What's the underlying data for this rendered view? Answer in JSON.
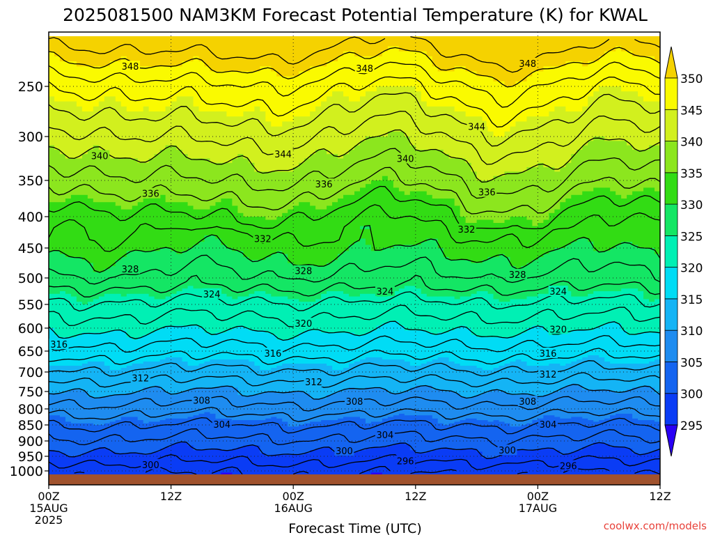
{
  "chart_data": {
    "type": "heatmap",
    "title": "2025081500 NAM3KM Forecast Potential Temperature (K) for KWAL",
    "xlabel": "Forecast Time (UTC)",
    "ylabel": "",
    "credit": "coolwx.com/models",
    "x_ticks": [
      {
        "hours": 0,
        "lines": [
          "00Z",
          "15AUG",
          "2025"
        ]
      },
      {
        "hours": 12,
        "lines": [
          "12Z"
        ]
      },
      {
        "hours": 24,
        "lines": [
          "00Z",
          "16AUG"
        ]
      },
      {
        "hours": 36,
        "lines": [
          "12Z"
        ]
      },
      {
        "hours": 48,
        "lines": [
          "00Z",
          "17AUG"
        ]
      },
      {
        "hours": 60,
        "lines": [
          "12Z"
        ]
      }
    ],
    "y_ticks": [
      250,
      300,
      350,
      400,
      450,
      500,
      550,
      600,
      650,
      700,
      750,
      800,
      850,
      900,
      950,
      1000
    ],
    "y_axis": "pressure (hPa)",
    "ylim": [
      200,
      1010
    ],
    "xlim": [
      0,
      60
    ],
    "colorbar": {
      "levels": [
        295,
        300,
        305,
        310,
        315,
        320,
        325,
        330,
        335,
        340,
        345,
        350
      ],
      "colors": [
        "#2a00f5",
        "#0a3cf5",
        "#1464f0",
        "#1e8cf0",
        "#14b4f5",
        "#00dcf5",
        "#00f0b4",
        "#14e664",
        "#32dc14",
        "#8ce61e",
        "#d2f01e",
        "#fafa00",
        "#f5d200"
      ],
      "label": "Potential Temperature (K)"
    },
    "contour_labels": [
      {
        "value": 348,
        "x_hours": 8.0,
        "pressure": 230
      },
      {
        "value": 348,
        "x_hours": 31.0,
        "pressure": 232
      },
      {
        "value": 348,
        "x_hours": 47.0,
        "pressure": 227
      },
      {
        "value": 344,
        "x_hours": 23.0,
        "pressure": 320
      },
      {
        "value": 344,
        "x_hours": 42.0,
        "pressure": 290
      },
      {
        "value": 340,
        "x_hours": 5.0,
        "pressure": 322
      },
      {
        "value": 340,
        "x_hours": 35.0,
        "pressure": 325
      },
      {
        "value": 336,
        "x_hours": 10.0,
        "pressure": 368
      },
      {
        "value": 336,
        "x_hours": 27.0,
        "pressure": 355
      },
      {
        "value": 336,
        "x_hours": 43.0,
        "pressure": 366
      },
      {
        "value": 332,
        "x_hours": 21.0,
        "pressure": 435
      },
      {
        "value": 332,
        "x_hours": 41.0,
        "pressure": 420
      },
      {
        "value": 328,
        "x_hours": 8.0,
        "pressure": 485
      },
      {
        "value": 328,
        "x_hours": 25.0,
        "pressure": 488
      },
      {
        "value": 328,
        "x_hours": 46.0,
        "pressure": 494
      },
      {
        "value": 324,
        "x_hours": 16.0,
        "pressure": 530
      },
      {
        "value": 324,
        "x_hours": 33.0,
        "pressure": 525
      },
      {
        "value": 324,
        "x_hours": 50.0,
        "pressure": 525
      },
      {
        "value": 320,
        "x_hours": 25.0,
        "pressure": 590
      },
      {
        "value": 320,
        "x_hours": 50.0,
        "pressure": 602
      },
      {
        "value": 316,
        "x_hours": 1.0,
        "pressure": 635
      },
      {
        "value": 316,
        "x_hours": 22.0,
        "pressure": 655
      },
      {
        "value": 316,
        "x_hours": 49.0,
        "pressure": 655
      },
      {
        "value": 312,
        "x_hours": 9.0,
        "pressure": 715
      },
      {
        "value": 312,
        "x_hours": 26.0,
        "pressure": 725
      },
      {
        "value": 312,
        "x_hours": 49.0,
        "pressure": 705
      },
      {
        "value": 308,
        "x_hours": 15.0,
        "pressure": 775
      },
      {
        "value": 308,
        "x_hours": 30.0,
        "pressure": 778
      },
      {
        "value": 308,
        "x_hours": 47.0,
        "pressure": 778
      },
      {
        "value": 304,
        "x_hours": 17.0,
        "pressure": 848
      },
      {
        "value": 304,
        "x_hours": 33.0,
        "pressure": 880
      },
      {
        "value": 304,
        "x_hours": 49.0,
        "pressure": 848
      },
      {
        "value": 300,
        "x_hours": 29.0,
        "pressure": 932
      },
      {
        "value": 300,
        "x_hours": 45.0,
        "pressure": 930
      },
      {
        "value": 300,
        "x_hours": 10.0,
        "pressure": 978
      },
      {
        "value": 296,
        "x_hours": 35.0,
        "pressure": 966
      },
      {
        "value": 296,
        "x_hours": 51.0,
        "pressure": 982
      }
    ],
    "grid": true
  }
}
